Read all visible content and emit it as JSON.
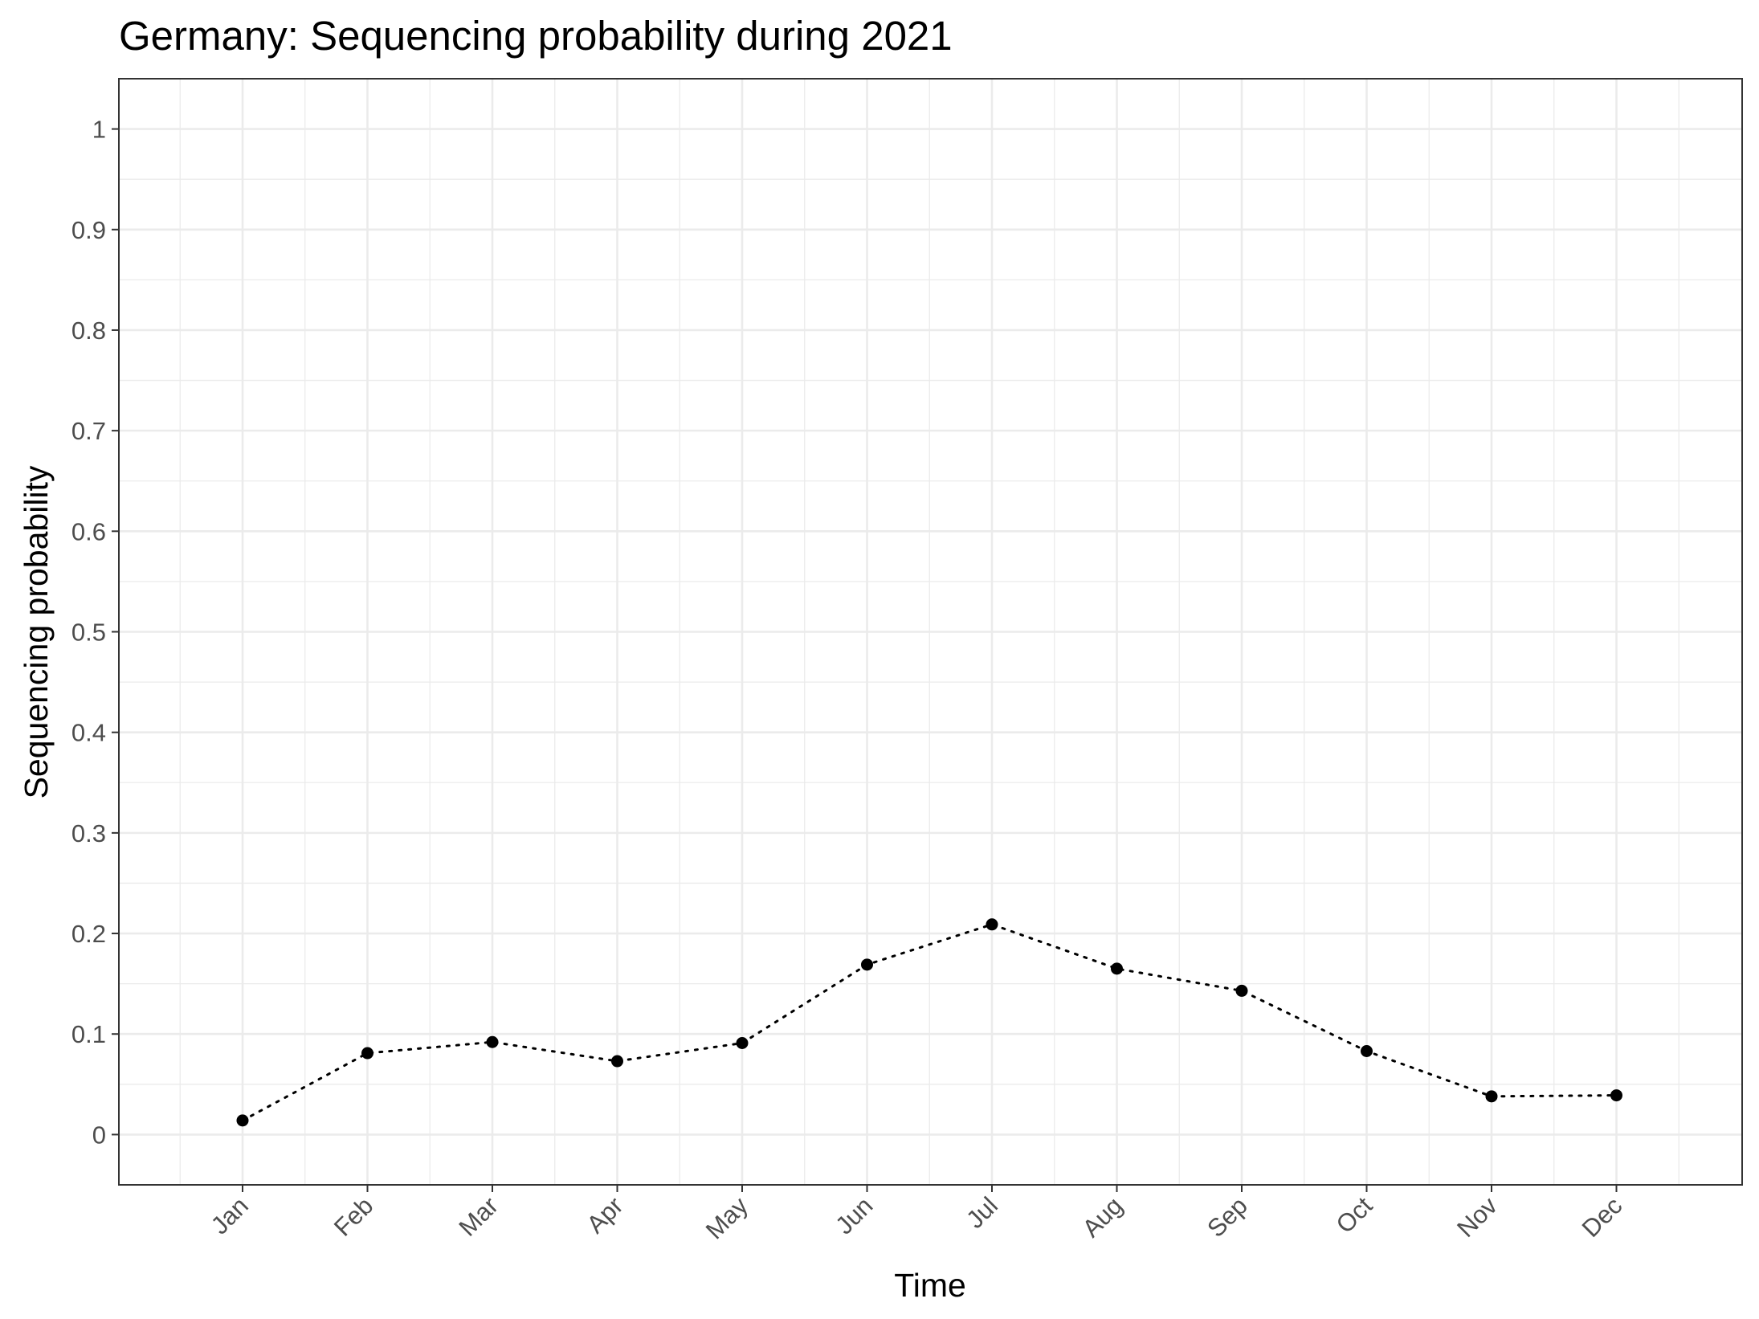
{
  "chart_data": {
    "type": "line",
    "title": "Germany: Sequencing probability during 2021",
    "xlabel": "Time",
    "ylabel": "Sequencing probability",
    "categories": [
      "Jan",
      "Feb",
      "Mar",
      "Apr",
      "May",
      "Jun",
      "Jul",
      "Aug",
      "Sep",
      "Oct",
      "Nov",
      "Dec"
    ],
    "series": [
      {
        "values": [
          0.014,
          0.081,
          0.092,
          0.073,
          0.091,
          0.169,
          0.209,
          0.165,
          0.143,
          0.083,
          0.038,
          0.039
        ]
      }
    ],
    "ylim": [
      -0.05,
      1.05
    ],
    "yticks": [
      0,
      0.1,
      0.2,
      0.3,
      0.4,
      0.5,
      0.6,
      0.7,
      0.8,
      0.9,
      1
    ],
    "ytick_labels": [
      "0",
      "0.1",
      "0.2",
      "0.3",
      "0.4",
      "0.5",
      "0.6",
      "0.7",
      "0.8",
      "0.9",
      "1"
    ],
    "grid": true,
    "line_style": "dotted",
    "marker": "circle",
    "line_color": "#000000",
    "gridline_color": "#ebebeb",
    "panel_border_color": "#333333"
  }
}
